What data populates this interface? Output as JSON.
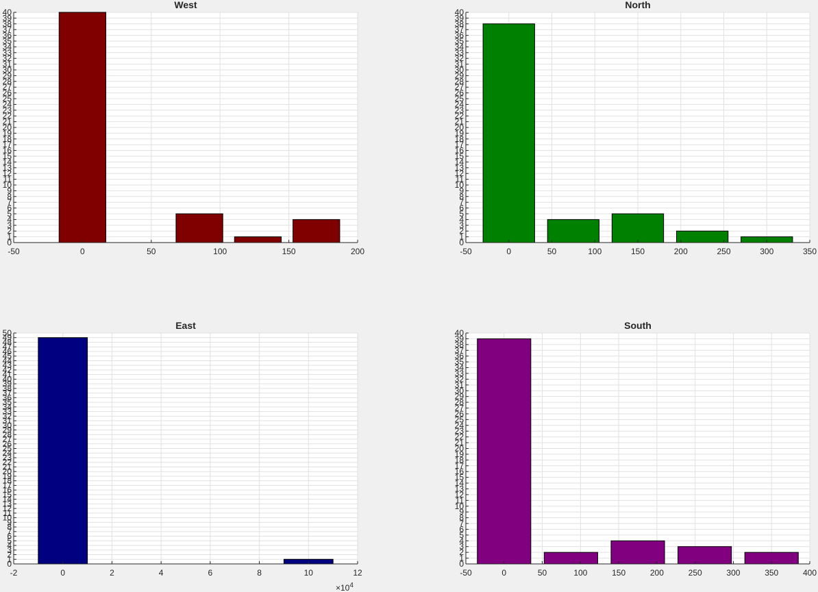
{
  "chart_data": [
    {
      "type": "bar",
      "title": "West",
      "color": "#800000",
      "xlim": [
        -50,
        200
      ],
      "ylim": [
        0,
        40
      ],
      "xticks": [
        -50,
        0,
        50,
        100,
        150,
        200
      ],
      "xtick_labels": [
        "-50",
        "0",
        "50",
        "100",
        "150",
        "200"
      ],
      "x_multiplier": "",
      "bar_width": 34,
      "bars": [
        {
          "x": 0,
          "value": 40
        },
        {
          "x": 85,
          "value": 5
        },
        {
          "x": 127.5,
          "value": 1
        },
        {
          "x": 170,
          "value": 4
        }
      ],
      "grid": true
    },
    {
      "type": "bar",
      "title": "North",
      "color": "#008000",
      "xlim": [
        -50,
        350
      ],
      "ylim": [
        0,
        40
      ],
      "xticks": [
        -50,
        0,
        50,
        100,
        150,
        200,
        250,
        300,
        350
      ],
      "xtick_labels": [
        "-50",
        "0",
        "50",
        "100",
        "150",
        "200",
        "250",
        "300",
        "350"
      ],
      "x_multiplier": "",
      "bar_width": 60,
      "bars": [
        {
          "x": 0,
          "value": 38
        },
        {
          "x": 75,
          "value": 4
        },
        {
          "x": 150,
          "value": 5
        },
        {
          "x": 225,
          "value": 2
        },
        {
          "x": 300,
          "value": 1
        }
      ],
      "grid": true
    },
    {
      "type": "bar",
      "title": "East",
      "color": "#000080",
      "xlim": [
        -2,
        12
      ],
      "ylim": [
        0,
        50
      ],
      "xticks": [
        -2,
        0,
        2,
        4,
        6,
        8,
        10,
        12
      ],
      "xtick_labels": [
        "-2",
        "0",
        "2",
        "4",
        "6",
        "8",
        "10",
        "12"
      ],
      "x_multiplier": "×10",
      "x_multiplier_exp": "4",
      "bar_width": 2,
      "bars": [
        {
          "x": 0,
          "value": 49
        },
        {
          "x": 10,
          "value": 1
        }
      ],
      "grid": true
    },
    {
      "type": "bar",
      "title": "South",
      "color": "#800080",
      "xlim": [
        -50,
        400
      ],
      "ylim": [
        0,
        40
      ],
      "xticks": [
        -50,
        0,
        50,
        100,
        150,
        200,
        250,
        300,
        350,
        400
      ],
      "xtick_labels": [
        "-50",
        "0",
        "50",
        "100",
        "150",
        "200",
        "250",
        "300",
        "350",
        "400"
      ],
      "x_multiplier": "",
      "bar_width": 70,
      "bars": [
        {
          "x": 0,
          "value": 39
        },
        {
          "x": 87.5,
          "value": 2
        },
        {
          "x": 175,
          "value": 4
        },
        {
          "x": 262.5,
          "value": 3
        },
        {
          "x": 350,
          "value": 2
        }
      ],
      "grid": true
    }
  ]
}
